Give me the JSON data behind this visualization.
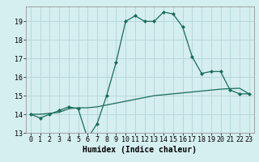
{
  "line1_x": [
    0,
    1,
    2,
    3,
    4,
    5,
    6,
    7,
    8,
    9,
    10,
    11,
    12,
    13,
    14,
    15,
    16,
    17,
    18,
    19,
    20,
    21,
    22,
    23
  ],
  "line1_y": [
    14.0,
    13.8,
    14.0,
    14.2,
    14.4,
    14.3,
    12.7,
    13.5,
    15.0,
    16.8,
    19.0,
    19.3,
    19.0,
    19.0,
    19.5,
    19.4,
    18.7,
    17.1,
    16.2,
    16.3,
    16.3,
    15.3,
    15.1,
    15.1
  ],
  "line2_x": [
    0,
    1,
    2,
    3,
    4,
    5,
    6,
    7,
    8,
    9,
    10,
    11,
    12,
    13,
    14,
    15,
    16,
    17,
    18,
    19,
    20,
    21,
    22,
    23
  ],
  "line2_y": [
    14.0,
    14.0,
    14.05,
    14.1,
    14.3,
    14.35,
    14.35,
    14.4,
    14.5,
    14.6,
    14.7,
    14.8,
    14.9,
    15.0,
    15.05,
    15.1,
    15.15,
    15.2,
    15.25,
    15.3,
    15.35,
    15.38,
    15.4,
    15.1
  ],
  "line_color": "#1a6b5a",
  "bg_color": "#d5eef0",
  "grid_color": "#b8d8dc",
  "xlabel": "Humidex (Indice chaleur)",
  "xlabel_fontsize": 7,
  "tick_fontsize": 6,
  "ylim": [
    13,
    19.8
  ],
  "xlim": [
    -0.5,
    23.5
  ],
  "yticks": [
    13,
    14,
    15,
    16,
    17,
    18,
    19
  ],
  "xticks": [
    0,
    1,
    2,
    3,
    4,
    5,
    6,
    7,
    8,
    9,
    10,
    11,
    12,
    13,
    14,
    15,
    16,
    17,
    18,
    19,
    20,
    21,
    22,
    23
  ]
}
